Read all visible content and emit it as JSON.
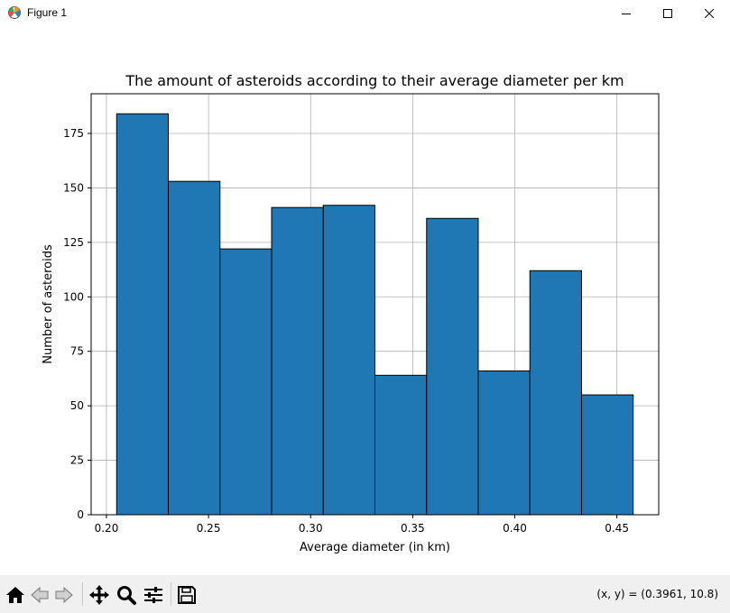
{
  "window": {
    "title": "Figure 1",
    "icon": "matplotlib-icon",
    "controls": [
      "minimize-icon",
      "maximize-icon",
      "close-icon"
    ]
  },
  "toolbar": {
    "buttons": [
      "home-icon",
      "back-icon",
      "forward-icon",
      "pan-icon",
      "zoom-icon",
      "configure-subplots-icon",
      "save-icon"
    ],
    "coords": "(x, y) = (0.3961, 10.8)"
  },
  "chart_data": {
    "type": "bar",
    "title": "The amount of asteroids according to their average diameter per km",
    "xlabel": "Average diameter (in km)",
    "ylabel": "Number of asteroids",
    "bin_edges": [
      0.205,
      0.2303,
      0.2556,
      0.2809,
      0.3062,
      0.3315,
      0.3568,
      0.3821,
      0.4074,
      0.4327,
      0.458
    ],
    "values": [
      184,
      153,
      122,
      141,
      142,
      64,
      136,
      66,
      112,
      55
    ],
    "xlim": [
      0.1925,
      0.4705
    ],
    "ylim": [
      0,
      193.2
    ],
    "xticks": [
      0.2,
      0.25,
      0.3,
      0.35,
      0.4,
      0.45
    ],
    "xtick_labels": [
      "0.20",
      "0.25",
      "0.30",
      "0.35",
      "0.40",
      "0.45"
    ],
    "yticks": [
      0,
      25,
      50,
      75,
      100,
      125,
      150,
      175
    ],
    "ytick_labels": [
      "0",
      "25",
      "50",
      "75",
      "100",
      "125",
      "150",
      "175"
    ],
    "grid": true,
    "bar_color": "#1f77b4",
    "edge_color": "#000000"
  }
}
